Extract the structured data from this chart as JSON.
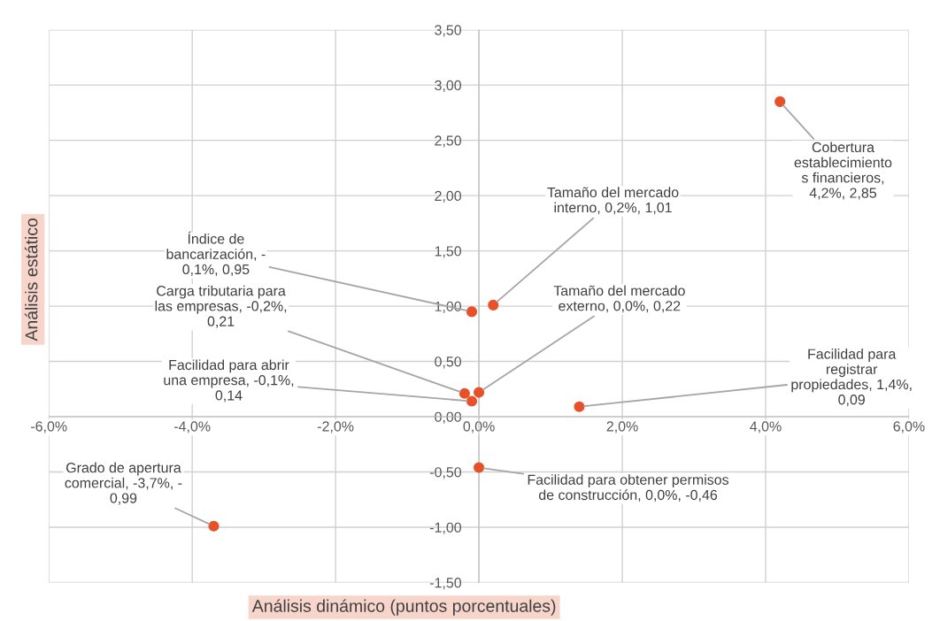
{
  "chart_data": {
    "type": "scatter",
    "xlabel": "Análisis dinámico (puntos porcentuales)",
    "ylabel": "Análisis estático",
    "series": [
      {
        "color": "#e8502a",
        "x": [
          4.2,
          0.2,
          -0.1,
          0.0,
          -0.2,
          -0.1,
          1.4,
          0.0,
          -3.7
        ],
        "values": [
          2.85,
          1.01,
          0.95,
          0.22,
          0.21,
          0.14,
          0.09,
          -0.46,
          -0.99
        ]
      }
    ],
    "marker": "circle",
    "xlim": [
      -6,
      6
    ],
    "xticks": [
      {
        "value": -6,
        "label": "-6,0%"
      },
      {
        "value": -4,
        "label": "-4,0%"
      },
      {
        "value": -2,
        "label": "-2,0%"
      },
      {
        "value": 0,
        "label": "0,0%"
      },
      {
        "value": 2,
        "label": "2,0%"
      },
      {
        "value": 4,
        "label": "4,0%"
      },
      {
        "value": 6,
        "label": "6,0%"
      }
    ],
    "ylim": [
      -1.5,
      3.5
    ],
    "yticks": [
      {
        "value": -1.5,
        "label": "-1,50"
      },
      {
        "value": -1,
        "label": "-1,00"
      },
      {
        "value": -0.5,
        "label": "-0,50"
      },
      {
        "value": 0,
        "label": "0,00"
      },
      {
        "value": 0.5,
        "label": "0,50"
      },
      {
        "value": 1,
        "label": "1,00"
      },
      {
        "value": 1.5,
        "label": "1,50"
      },
      {
        "value": 2,
        "label": "2,00"
      },
      {
        "value": 2.5,
        "label": "2,50"
      },
      {
        "value": 3,
        "label": "3,00"
      },
      {
        "value": 3.5,
        "label": "3,50"
      }
    ],
    "grid": true,
    "annotations": [
      {
        "text": "Cobertura\nestablecimiento\ns financieros,\n4,2%, 2,85",
        "x": 4.2,
        "y": 2.85
      },
      {
        "text": "Tamaño del mercado\ninterno, 0,2%, 1,01",
        "x": 0.2,
        "y": 1.01
      },
      {
        "text": "Índice de\nbancarización, -\n0,1%, 0,95",
        "x": -0.1,
        "y": 0.95
      },
      {
        "text": "Tamaño del mercado\nexterno, 0,0%, 0,22",
        "x": 0.0,
        "y": 0.22
      },
      {
        "text": "Carga tributaria para\nlas empresas, -0,2%,\n0,21",
        "x": -0.2,
        "y": 0.21
      },
      {
        "text": "Facilidad para abrir\nuna empresa, -0,1%,\n0,14",
        "x": -0.1,
        "y": 0.14
      },
      {
        "text": "Facilidad para\nregistrar\npropiedades, 1,4%,\n0,09",
        "x": 1.4,
        "y": 0.09
      },
      {
        "text": "Facilidad para obtener permisos\nde construcción, 0,0%, -0,46",
        "x": 0.0,
        "y": -0.46
      },
      {
        "text": "Grado de apertura\ncomercial, -3,7%, -\n0,99",
        "x": -3.7,
        "y": -0.99
      }
    ]
  }
}
